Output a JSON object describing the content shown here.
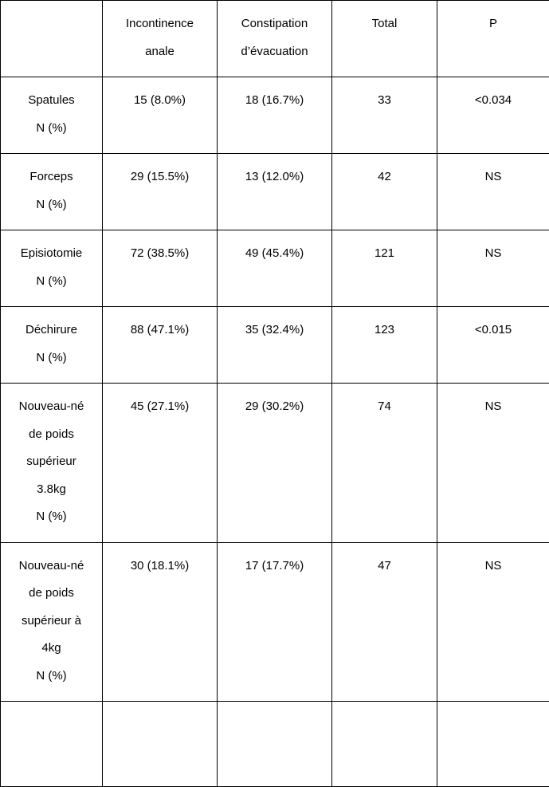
{
  "table": {
    "columns": [
      {
        "label_line1": "",
        "label_line2": ""
      },
      {
        "label_line1": "Incontinence",
        "label_line2": "anale"
      },
      {
        "label_line1": "Constipation",
        "label_line2": "d’évacuation"
      },
      {
        "label_line1": "Total",
        "label_line2": ""
      },
      {
        "label_line1": "P",
        "label_line2": ""
      }
    ],
    "rows": [
      {
        "label_lines": [
          "Spatules",
          "N (%)"
        ],
        "incontinence": "15 (8.0%)",
        "constipation": "18 (16.7%)",
        "total": "33",
        "p": "<0.034"
      },
      {
        "label_lines": [
          "Forceps",
          "N (%)"
        ],
        "incontinence": "29 (15.5%)",
        "constipation": "13 (12.0%)",
        "total": "42",
        "p": "NS"
      },
      {
        "label_lines": [
          "Episiotomie",
          "N (%)"
        ],
        "incontinence": "72 (38.5%)",
        "constipation": "49 (45.4%)",
        "total": "121",
        "p": "NS"
      },
      {
        "label_lines": [
          "Déchirure",
          "N (%)"
        ],
        "incontinence": "88 (47.1%)",
        "constipation": "35 (32.4%)",
        "total": "123",
        "p": "<0.015"
      },
      {
        "label_lines": [
          "Nouveau-né",
          "de poids",
          "supérieur",
          "3.8kg",
          "N (%)"
        ],
        "incontinence": "45 (27.1%)",
        "constipation": "29 (30.2%)",
        "total": "74",
        "p": "NS"
      },
      {
        "label_lines": [
          "Nouveau-né",
          "de poids",
          "supérieur à",
          "4kg",
          "N (%)"
        ],
        "incontinence": "30 (18.1%)",
        "constipation": "17 (17.7%)",
        "total": "47",
        "p": "NS"
      }
    ],
    "colors": {
      "border": "#000000",
      "background": "#ffffff",
      "text": "#000000"
    },
    "font": {
      "family": "Arial",
      "size_pt": 11
    }
  }
}
